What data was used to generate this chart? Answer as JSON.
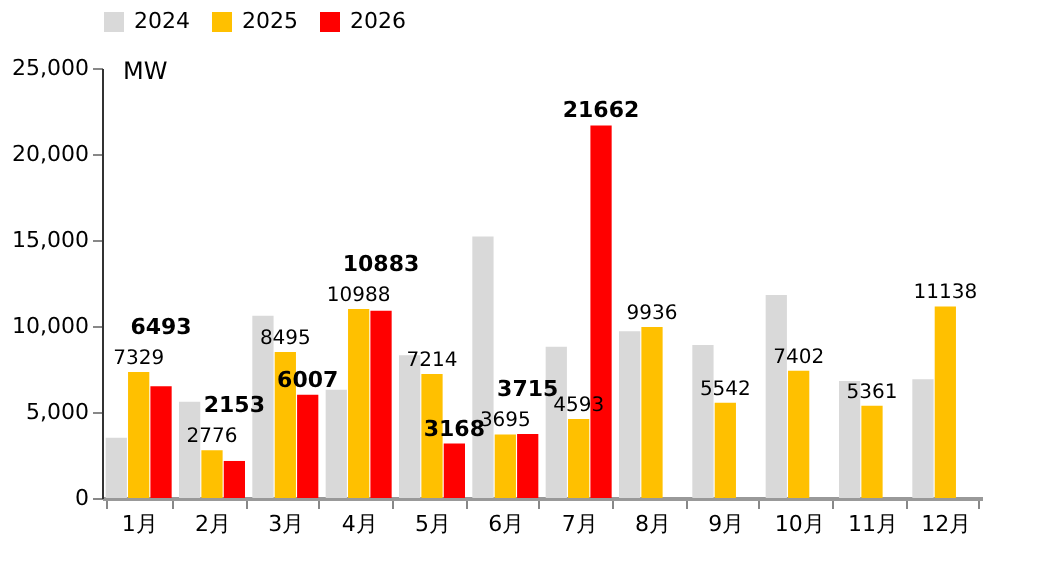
{
  "chart_data": {
    "type": "bar",
    "ylabel": "MW",
    "categories": [
      "1月",
      "2月",
      "3月",
      "4月",
      "5月",
      "6月",
      "7月",
      "8月",
      "9月",
      "10月",
      "11月",
      "12月"
    ],
    "series": [
      {
        "name": "2024",
        "color": "#d9d9d9",
        "values": [
          3500,
          5600,
          10600,
          6300,
          8300,
          15200,
          8800,
          9700,
          8900,
          11800,
          6800,
          6900
        ]
      },
      {
        "name": "2025",
        "color": "#ffc000",
        "values": [
          7329,
          2776,
          8495,
          10988,
          7214,
          3695,
          4593,
          9936,
          5542,
          7402,
          5361,
          11138
        ],
        "value_labels": [
          "7329",
          "2776",
          "8495",
          "10988",
          "7214",
          "3695",
          "4593",
          "9936",
          "5542",
          "7402",
          "5361",
          "11138"
        ]
      },
      {
        "name": "2026",
        "color": "#ff0000",
        "values": [
          6493,
          2153,
          6007,
          10883,
          3168,
          3715,
          21662,
          null,
          null,
          null,
          null,
          null
        ],
        "value_labels": [
          "6493",
          "2153",
          "6007",
          "10883",
          "3168",
          "3715",
          "21662",
          null,
          null,
          null,
          null,
          null
        ]
      }
    ],
    "ylim": [
      0,
      25000
    ],
    "yticks": [
      {
        "value": 0,
        "label": "0"
      },
      {
        "value": 5000,
        "label": "5,000"
      },
      {
        "value": 10000,
        "label": "10,000"
      },
      {
        "value": 15000,
        "label": "15,000"
      },
      {
        "value": 20000,
        "label": "20,000"
      },
      {
        "value": 25000,
        "label": "25,000"
      }
    ],
    "grid": false,
    "legend": "top"
  }
}
